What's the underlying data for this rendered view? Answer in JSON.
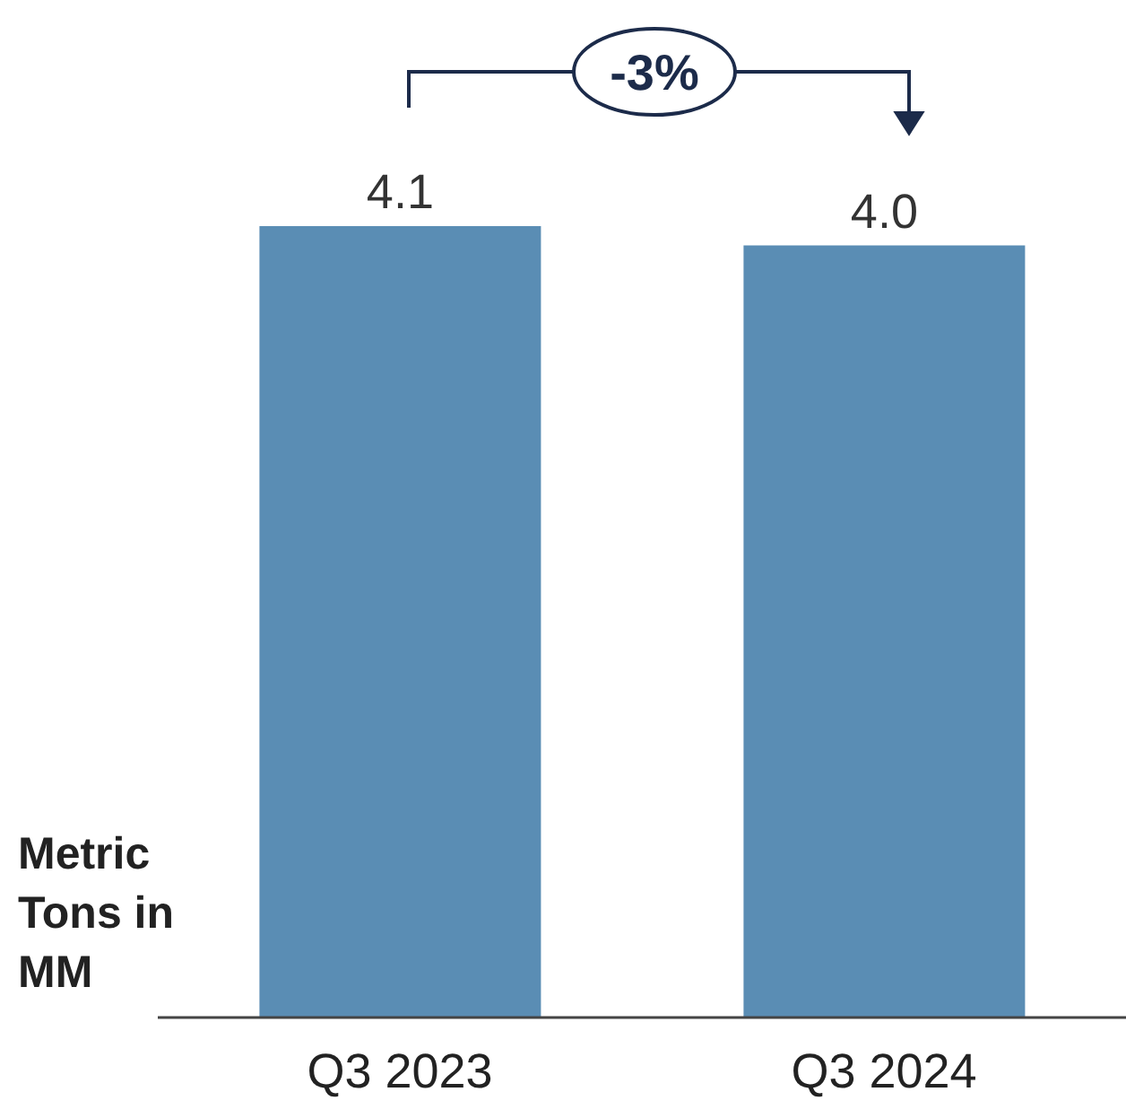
{
  "chart_data": {
    "type": "bar",
    "categories": [
      "Q3 2023",
      "Q3 2024"
    ],
    "values": [
      4.1,
      4.0
    ],
    "color": "#5a8db4",
    "value_labels": [
      "4.1",
      "4.0"
    ],
    "ylabel": "Metric Tons in MM",
    "annotations": [
      "-3%"
    ]
  }
}
